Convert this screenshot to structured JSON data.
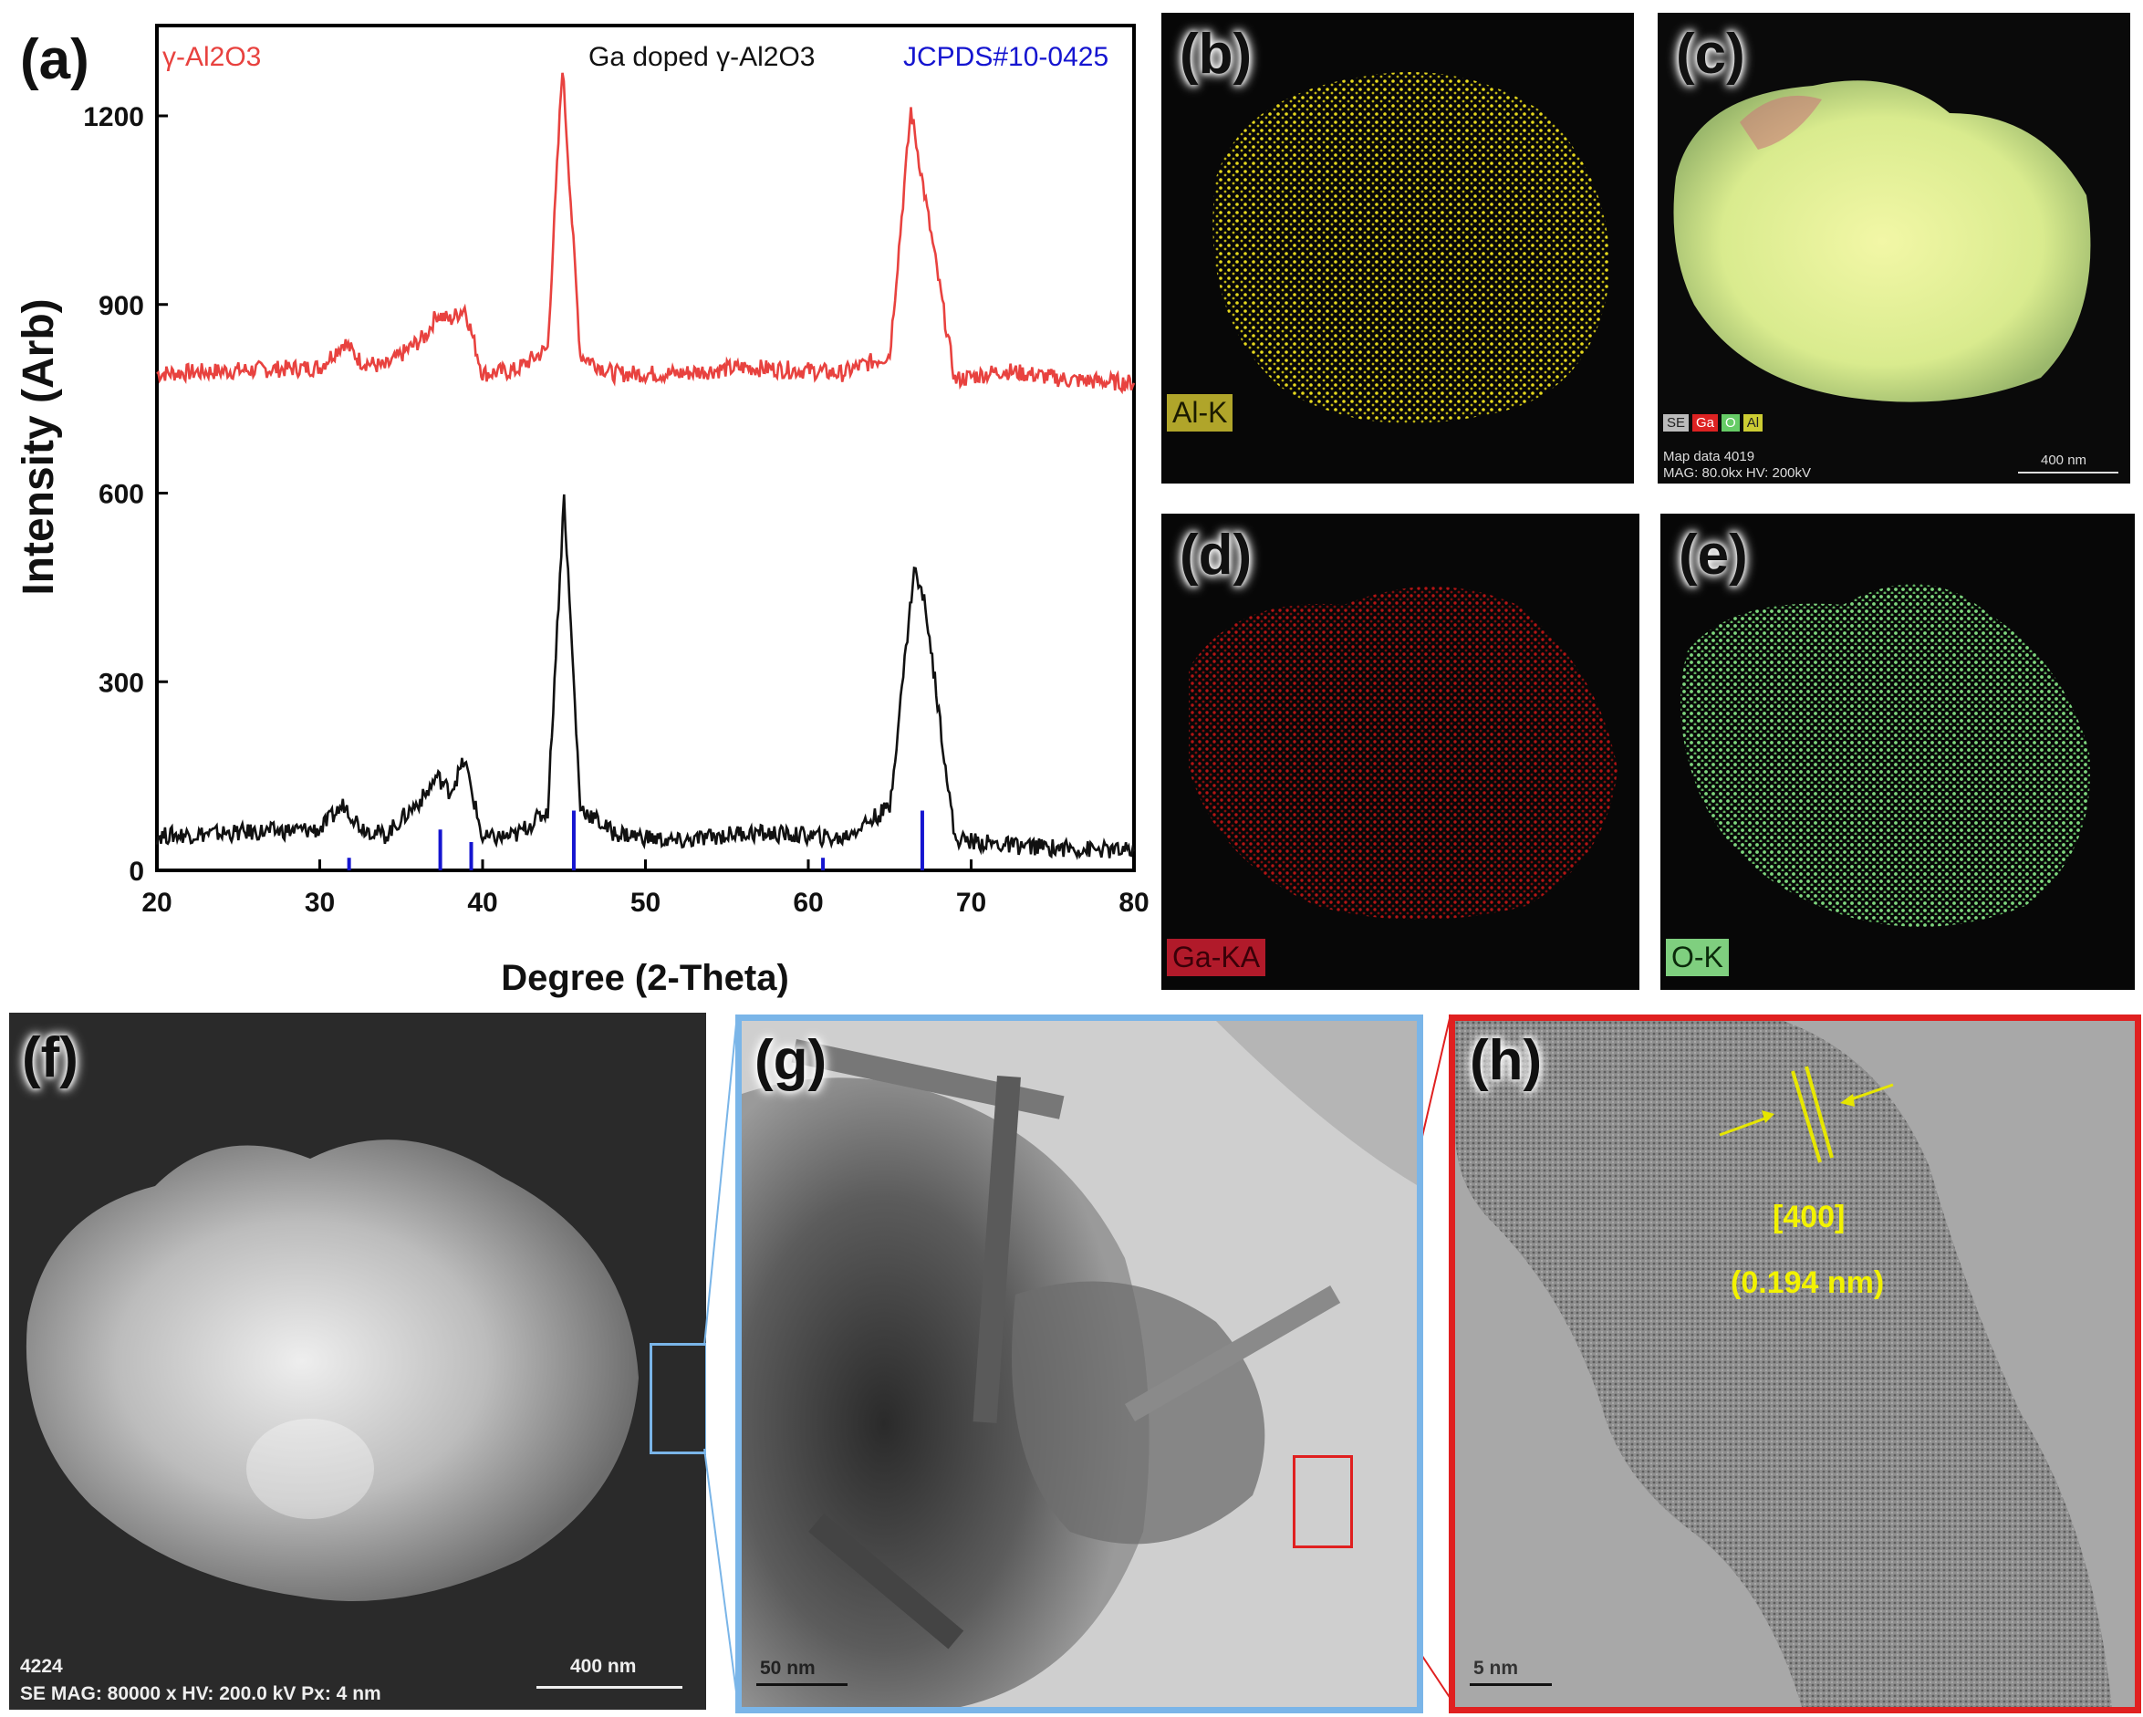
{
  "panels": {
    "a": "(a)",
    "b": "(b)",
    "c": "(c)",
    "d": "(d)",
    "e": "(e)",
    "f": "(f)",
    "g": "(g)",
    "h": "(h)"
  },
  "legend": {
    "pure": "γ-Al2O3",
    "doped": "Ga doped γ-Al2O3",
    "ref": "JCPDS#10-0425"
  },
  "colors": {
    "pure": "#e8423f",
    "doped": "#111111",
    "ref": "#1515d0"
  },
  "chart_data": {
    "type": "line",
    "xlabel": "Degree (2-Theta)",
    "ylabel": "Intensity (Arb)",
    "xlim": [
      20,
      80
    ],
    "ylim": [
      0,
      1300
    ],
    "xticks": [
      20,
      30,
      40,
      50,
      60,
      70,
      80
    ],
    "yticks": [
      0,
      300,
      600,
      900,
      1200
    ],
    "series": [
      {
        "name": "γ-Al2O3",
        "x": [
          20,
          25,
          30,
          31.5,
          32.5,
          34,
          36.5,
          37.2,
          38,
          38.9,
          40,
          42,
          44,
          44.9,
          46,
          48,
          52,
          56,
          60,
          62,
          65,
          66.3,
          67.3,
          69,
          72,
          76,
          80
        ],
        "values": [
          790,
          795,
          800,
          840,
          810,
          800,
          850,
          885,
          875,
          895,
          790,
          795,
          830,
          1280,
          820,
          790,
          790,
          800,
          795,
          790,
          820,
          1210,
          1050,
          780,
          795,
          780,
          775
        ]
      },
      {
        "name": "Ga doped γ-Al2O3",
        "x": [
          20,
          25,
          30,
          31.5,
          32.5,
          34,
          36.5,
          37.2,
          38,
          38.9,
          40,
          42,
          44,
          45,
          46,
          48,
          52,
          56,
          60,
          62,
          65,
          66.5,
          67.2,
          69,
          72,
          76,
          80
        ],
        "values": [
          55,
          60,
          65,
          105,
          70,
          55,
          120,
          150,
          125,
          175,
          50,
          55,
          95,
          595,
          100,
          60,
          45,
          60,
          55,
          50,
          100,
          480,
          420,
          50,
          40,
          35,
          30
        ]
      },
      {
        "name": "JCPDS#10-0425",
        "type": "stick",
        "x": [
          31.8,
          37.4,
          39.3,
          45.6,
          60.9,
          67.0
        ],
        "values": [
          20,
          65,
          45,
          95,
          20,
          95
        ]
      }
    ]
  },
  "maps": {
    "b_label": "Al-K",
    "c_legend": [
      "SE",
      "Ga",
      "O",
      "Al"
    ],
    "c_info1": "Map data 4019",
    "c_info2": "MAG: 80.0kx  HV: 200kV",
    "c_scale": "400 nm",
    "d_label": "Ga-KA",
    "e_label": "O-K"
  },
  "images": {
    "f_id": "4224",
    "f_info": "SE  MAG: 80000 x HV: 200.0 kV  Px: 4 nm",
    "f_scale": "400 nm",
    "g_scale": "50 nm",
    "h_scale": "5 nm",
    "h_plane": "[400]",
    "h_spacing": "(0.194 nm)"
  }
}
